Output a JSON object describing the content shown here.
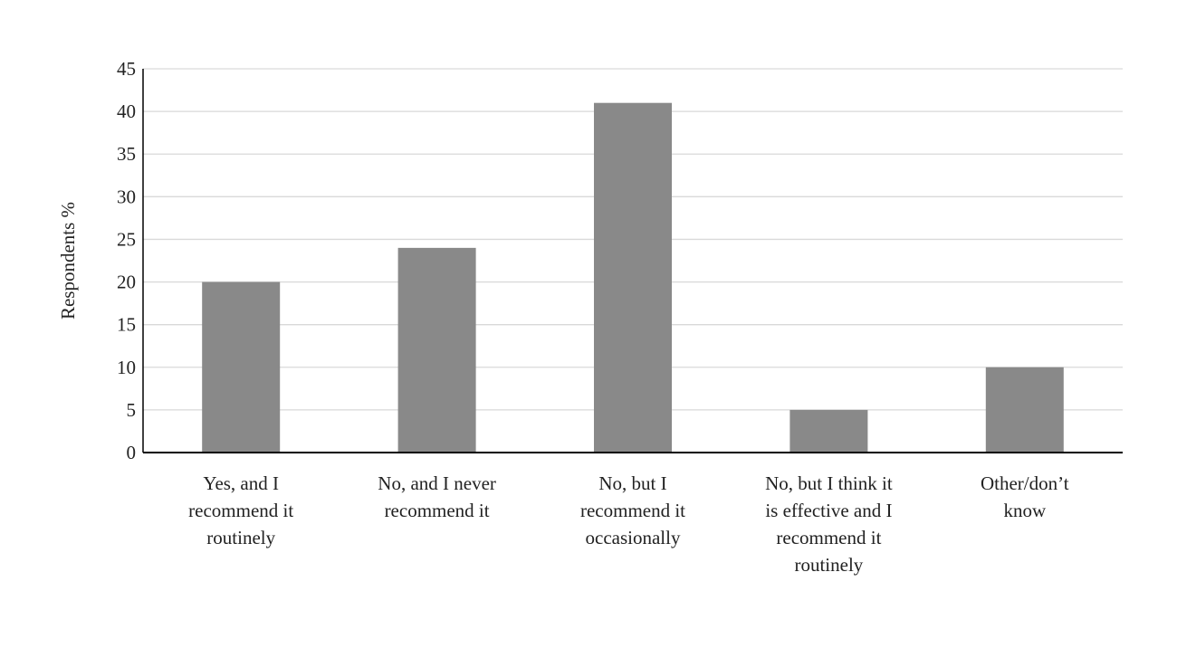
{
  "chart_data": {
    "type": "bar",
    "title": "",
    "xlabel": "",
    "ylabel": "Respondents %",
    "ylim": [
      0,
      45
    ],
    "yticks": [
      0,
      5,
      10,
      15,
      20,
      25,
      30,
      35,
      40,
      45
    ],
    "grid": true,
    "categories": [
      [
        "Yes, and I",
        "recommend it",
        "routinely"
      ],
      [
        "No, and I never",
        "recommend it"
      ],
      [
        "No, but I",
        "recommend it",
        "occasionally"
      ],
      [
        "No, but I think it",
        "is effective and I",
        "recommend it",
        "routinely"
      ],
      [
        "Other/don’t",
        "know"
      ]
    ],
    "values": [
      20,
      24,
      41,
      5,
      10
    ],
    "colors": {
      "bar": "#898989",
      "grid": "#d9d9d9",
      "axis": "#000000"
    }
  }
}
